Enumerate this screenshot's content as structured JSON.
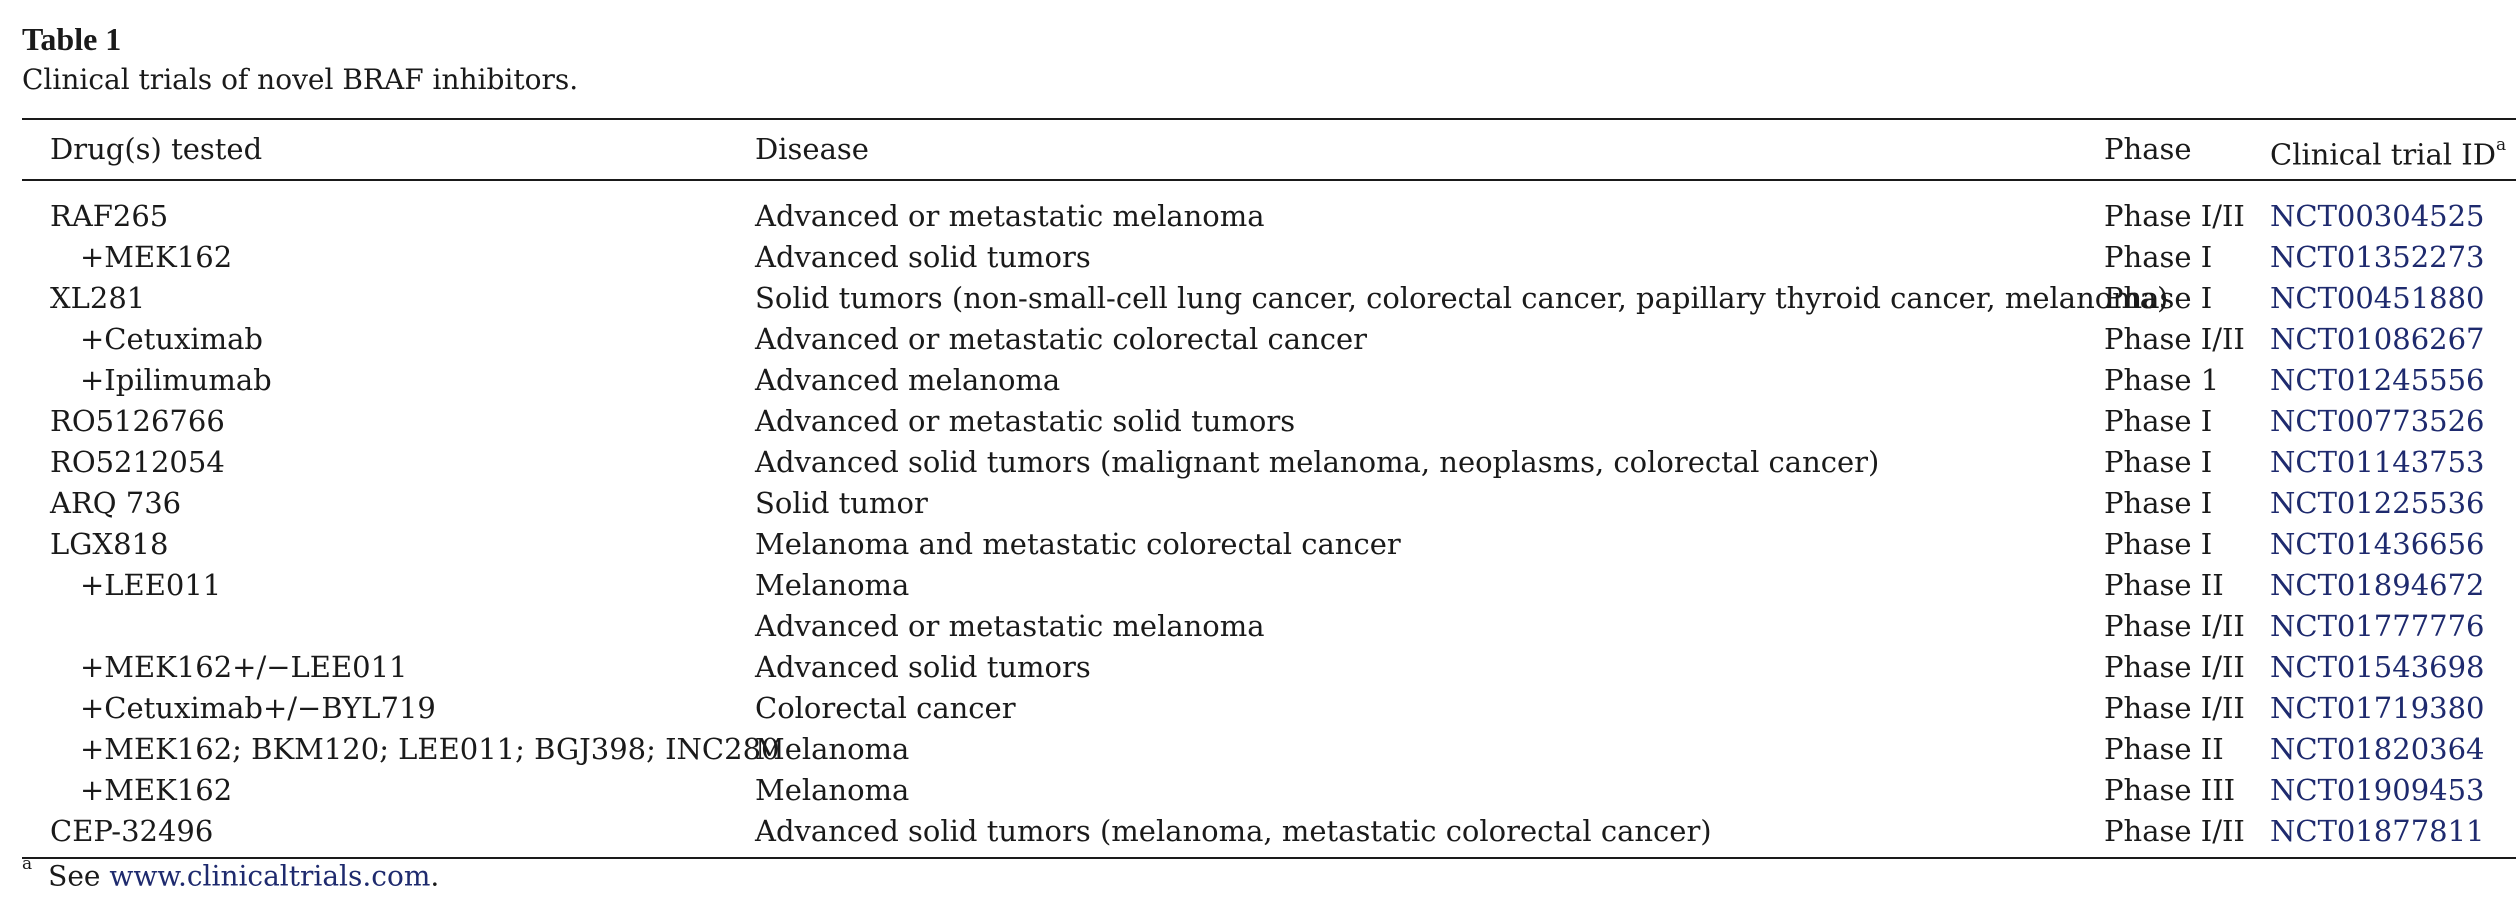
{
  "table": {
    "label": "Table 1",
    "caption": "Clinical trials of novel BRAF inhibitors.",
    "headers": {
      "drug": "Drug(s) tested",
      "disease": "Disease",
      "phase": "Phase",
      "trial": "Clinical trial ID",
      "trial_sup": "a"
    },
    "rows": [
      {
        "drug": "RAF265",
        "disease": "Advanced or metastatic melanoma",
        "phase": "Phase I/II",
        "trial": "NCT00304525"
      },
      {
        "drug": "+MEK162",
        "disease": "Advanced solid tumors",
        "phase": "Phase I",
        "trial": "NCT01352273"
      },
      {
        "drug": "XL281",
        "disease": "Solid tumors (non-small-cell lung cancer, colorectal cancer, papillary thyroid cancer, melanoma)",
        "phase": "Phase I",
        "trial": "NCT00451880"
      },
      {
        "drug": "+Cetuximab",
        "disease": "Advanced or metastatic colorectal cancer",
        "phase": "Phase I/II",
        "trial": "NCT01086267"
      },
      {
        "drug": "+Ipilimumab",
        "disease": "Advanced melanoma",
        "phase": "Phase 1",
        "trial": "NCT01245556"
      },
      {
        "drug": "RO5126766",
        "disease": "Advanced or metastatic solid tumors",
        "phase": "Phase I",
        "trial": "NCT00773526"
      },
      {
        "drug": "RO5212054",
        "disease": "Advanced solid tumors (malignant melanoma, neoplasms, colorectal cancer)",
        "phase": "Phase I",
        "trial": "NCT01143753"
      },
      {
        "drug": "ARQ 736",
        "disease": "Solid tumor",
        "phase": "Phase I",
        "trial": "NCT01225536"
      },
      {
        "drug": "LGX818",
        "disease": "Melanoma and metastatic colorectal cancer",
        "phase": "Phase I",
        "trial": "NCT01436656"
      },
      {
        "drug": "+LEE011",
        "disease": "Melanoma",
        "phase": "Phase II",
        "trial": "NCT01894672"
      },
      {
        "drug": "",
        "disease": "Advanced or metastatic melanoma",
        "phase": "Phase I/II",
        "trial": "NCT01777776"
      },
      {
        "drug": "+MEK162+/−LEE011",
        "disease": "Advanced solid tumors",
        "phase": "Phase I/II",
        "trial": "NCT01543698"
      },
      {
        "drug": "+Cetuximab+/−BYL719",
        "disease": "Colorectal cancer",
        "phase": "Phase I/II",
        "trial": "NCT01719380"
      },
      {
        "drug": "+MEK162; BKM120; LEE011; BGJ398; INC280",
        "disease": "Melanoma",
        "phase": "Phase II",
        "trial": "NCT01820364"
      },
      {
        "drug": "+MEK162",
        "disease": "Melanoma",
        "phase": "Phase III",
        "trial": "NCT01909453"
      },
      {
        "drug": "CEP-32496",
        "disease": "Advanced solid tumors (melanoma, metastatic colorectal cancer)",
        "phase": "Phase I/II",
        "trial": "NCT01877811"
      }
    ]
  },
  "footnote": {
    "marker": "a",
    "text": "See ",
    "link": "www.clinicaltrials.com",
    "end": "."
  },
  "colors": {
    "text": "#1a1a1a",
    "link": "#1e2a6e"
  }
}
